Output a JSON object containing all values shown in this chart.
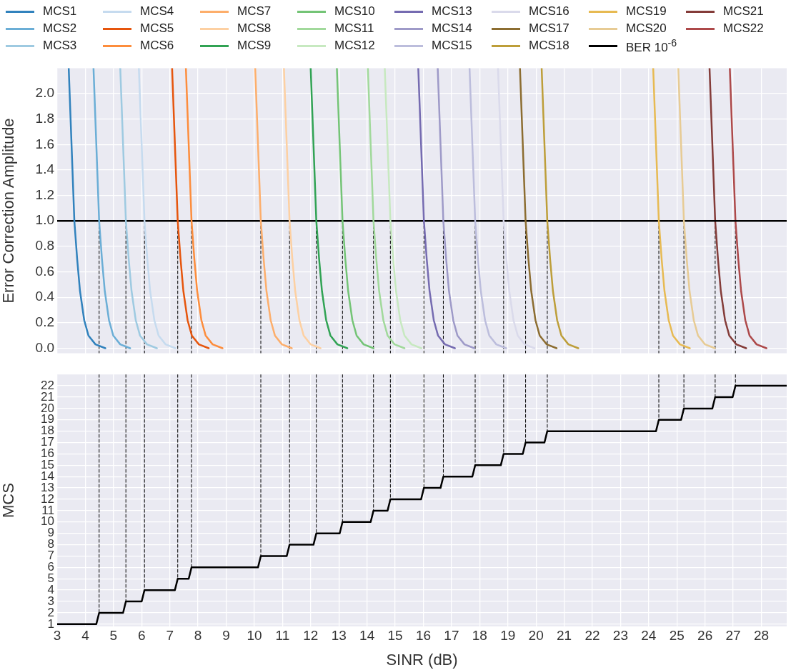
{
  "chart_data": [
    {
      "type": "line",
      "ylabel": "Error Correction Amplitude",
      "xlim": [
        3,
        28.9
      ],
      "ylim": [
        -0.04,
        2.2
      ],
      "xticks": [
        3,
        4,
        5,
        6,
        7,
        8,
        9,
        10,
        11,
        12,
        13,
        14,
        15,
        16,
        17,
        18,
        19,
        20,
        21,
        22,
        23,
        24,
        25,
        26,
        27,
        28
      ],
      "yticks": [
        {
          "value": 0,
          "label": "0.0"
        },
        0.2,
        0.4,
        0.6,
        0.8,
        {
          "value": 1,
          "label": "1.0"
        },
        1.2,
        1.4,
        1.6,
        1.8,
        {
          "value": 2,
          "label": "2.0"
        }
      ],
      "tick_labels": "y",
      "grid": true,
      "legend": "top",
      "marker": "none",
      "line_style": "solid",
      "series": [
        {
          "name": "MCS1",
          "color": "#3182bd",
          "x": [
            3.41,
            3.61,
            3.71,
            3.81,
            3.96,
            4.11,
            4.36,
            4.71
          ],
          "values": [
            2.2,
            1,
            0.7,
            0.45,
            0.22,
            0.1,
            0.03,
            0
          ]
        },
        {
          "name": "MCS2",
          "color": "#6baed6",
          "x": [
            4.29,
            4.49,
            4.59,
            4.69,
            4.84,
            4.99,
            5.24,
            5.59
          ],
          "values": [
            2.2,
            1,
            0.7,
            0.45,
            0.22,
            0.1,
            0.03,
            0
          ]
        },
        {
          "name": "MCS3",
          "color": "#9ecae1",
          "x": [
            5.24,
            5.44,
            5.54,
            5.64,
            5.79,
            5.94,
            6.19,
            6.54
          ],
          "values": [
            2.2,
            1,
            0.7,
            0.45,
            0.22,
            0.1,
            0.03,
            0
          ]
        },
        {
          "name": "MCS4",
          "color": "#c6dbef",
          "x": [
            5.9,
            6.1,
            6.2,
            6.3,
            6.45,
            6.6,
            6.85,
            7.2
          ],
          "values": [
            2.2,
            1,
            0.7,
            0.45,
            0.22,
            0.1,
            0.03,
            0
          ]
        },
        {
          "name": "MCS5",
          "color": "#e6550d",
          "x": [
            7.08,
            7.28,
            7.38,
            7.48,
            7.63,
            7.78,
            8.03,
            8.38
          ],
          "values": [
            2.2,
            1,
            0.7,
            0.45,
            0.22,
            0.1,
            0.03,
            0
          ]
        },
        {
          "name": "MCS6",
          "color": "#fd8d3c",
          "x": [
            7.57,
            7.77,
            7.87,
            7.97,
            8.12,
            8.27,
            8.52,
            8.87
          ],
          "values": [
            2.2,
            1,
            0.7,
            0.45,
            0.22,
            0.1,
            0.03,
            0
          ]
        },
        {
          "name": "MCS7",
          "color": "#fdae6b",
          "x": [
            10.03,
            10.23,
            10.33,
            10.43,
            10.58,
            10.73,
            10.98,
            11.33
          ],
          "values": [
            2.2,
            1,
            0.7,
            0.45,
            0.22,
            0.1,
            0.03,
            0
          ]
        },
        {
          "name": "MCS8",
          "color": "#fdd0a2",
          "x": [
            11.05,
            11.25,
            11.35,
            11.45,
            11.6,
            11.75,
            12,
            12.35
          ],
          "values": [
            2.2,
            1,
            0.7,
            0.45,
            0.22,
            0.1,
            0.03,
            0
          ]
        },
        {
          "name": "MCS9",
          "color": "#31a354",
          "x": [
            12,
            12.2,
            12.3,
            12.4,
            12.55,
            12.7,
            12.95,
            13.3
          ],
          "values": [
            2.2,
            1,
            0.7,
            0.45,
            0.22,
            0.1,
            0.03,
            0
          ]
        },
        {
          "name": "MCS10",
          "color": "#74c476",
          "x": [
            12.93,
            13.13,
            13.23,
            13.33,
            13.48,
            13.63,
            13.88,
            14.23
          ],
          "values": [
            2.2,
            1,
            0.7,
            0.45,
            0.22,
            0.1,
            0.03,
            0
          ]
        },
        {
          "name": "MCS11",
          "color": "#a1d99b",
          "x": [
            14.03,
            14.23,
            14.33,
            14.43,
            14.58,
            14.73,
            14.98,
            15.33
          ],
          "values": [
            2.2,
            1,
            0.7,
            0.45,
            0.22,
            0.1,
            0.03,
            0
          ]
        },
        {
          "name": "MCS12",
          "color": "#c7e9c0",
          "x": [
            14.63,
            14.83,
            14.93,
            15.03,
            15.18,
            15.33,
            15.58,
            15.93
          ],
          "values": [
            2.2,
            1,
            0.7,
            0.45,
            0.22,
            0.1,
            0.03,
            0
          ]
        },
        {
          "name": "MCS13",
          "color": "#756bb1",
          "x": [
            15.82,
            16.02,
            16.12,
            16.22,
            16.37,
            16.52,
            16.77,
            17.12
          ],
          "values": [
            2.2,
            1,
            0.7,
            0.45,
            0.22,
            0.1,
            0.03,
            0
          ]
        },
        {
          "name": "MCS14",
          "color": "#9e9ac8",
          "x": [
            16.51,
            16.71,
            16.81,
            16.91,
            17.06,
            17.21,
            17.46,
            17.81
          ],
          "values": [
            2.2,
            1,
            0.7,
            0.45,
            0.22,
            0.1,
            0.03,
            0
          ]
        },
        {
          "name": "MCS15",
          "color": "#bcbddc",
          "x": [
            17.64,
            17.84,
            17.94,
            18.04,
            18.19,
            18.34,
            18.59,
            18.94
          ],
          "values": [
            2.2,
            1,
            0.7,
            0.45,
            0.22,
            0.1,
            0.03,
            0
          ]
        },
        {
          "name": "MCS16",
          "color": "#dadaeb",
          "x": [
            18.65,
            18.85,
            18.95,
            19.05,
            19.2,
            19.35,
            19.6,
            19.95
          ],
          "values": [
            2.2,
            1,
            0.7,
            0.45,
            0.22,
            0.1,
            0.03,
            0
          ]
        },
        {
          "name": "MCS17",
          "color": "#8c6d31",
          "x": [
            19.43,
            19.63,
            19.73,
            19.83,
            19.98,
            20.13,
            20.38,
            20.73
          ],
          "values": [
            2.2,
            1,
            0.7,
            0.45,
            0.22,
            0.1,
            0.03,
            0
          ]
        },
        {
          "name": "MCS18",
          "color": "#bd9e39",
          "x": [
            20.2,
            20.4,
            20.5,
            20.6,
            20.75,
            20.9,
            21.15,
            21.5
          ],
          "values": [
            2.2,
            1,
            0.7,
            0.45,
            0.22,
            0.1,
            0.03,
            0
          ]
        },
        {
          "name": "MCS19",
          "color": "#e7ba52",
          "x": [
            24.16,
            24.36,
            24.46,
            24.56,
            24.71,
            24.86,
            25.11,
            25.46
          ],
          "values": [
            2.2,
            1,
            0.7,
            0.45,
            0.22,
            0.1,
            0.03,
            0
          ]
        },
        {
          "name": "MCS20",
          "color": "#e7cb94",
          "x": [
            25.05,
            25.25,
            25.35,
            25.45,
            25.6,
            25.75,
            26,
            26.35
          ],
          "values": [
            2.2,
            1,
            0.7,
            0.45,
            0.22,
            0.1,
            0.03,
            0
          ]
        },
        {
          "name": "BER 10$^{-6}$",
          "color": "#000000",
          "x": [
            3,
            28.9
          ],
          "values": [
            1,
            1
          ]
        },
        {
          "name": "MCS21",
          "color": "#843c39",
          "x": [
            26.16,
            26.36,
            26.46,
            26.56,
            26.71,
            26.86,
            27.11,
            27.46
          ],
          "values": [
            2.2,
            1,
            0.7,
            0.45,
            0.22,
            0.1,
            0.03,
            0
          ]
        },
        {
          "name": "MCS22",
          "color": "#ad494a",
          "x": [
            26.88,
            27.08,
            27.18,
            27.28,
            27.43,
            27.58,
            27.83,
            28.18
          ],
          "values": [
            2.2,
            1,
            0.7,
            0.45,
            0.22,
            0.1,
            0.03,
            0
          ]
        },
        {
          "color": "#000000",
          "line_style": "dashed",
          "x": [
            4.49,
            4.49
          ],
          "values": [
            1,
            -0.04
          ]
        },
        {
          "color": "#000000",
          "line_style": "dashed",
          "x": [
            5.44,
            5.44
          ],
          "values": [
            1,
            -0.04
          ]
        },
        {
          "color": "#000000",
          "line_style": "dashed",
          "x": [
            6.1,
            6.1
          ],
          "values": [
            1,
            -0.04
          ]
        },
        {
          "color": "#000000",
          "line_style": "dashed",
          "x": [
            7.28,
            7.28
          ],
          "values": [
            1,
            -0.04
          ]
        },
        {
          "color": "#000000",
          "line_style": "dashed",
          "x": [
            7.77,
            7.77
          ],
          "values": [
            1,
            -0.04
          ]
        },
        {
          "color": "#000000",
          "line_style": "dashed",
          "x": [
            10.23,
            10.23
          ],
          "values": [
            1,
            -0.04
          ]
        },
        {
          "color": "#000000",
          "line_style": "dashed",
          "x": [
            11.25,
            11.25
          ],
          "values": [
            1,
            -0.04
          ]
        },
        {
          "color": "#000000",
          "line_style": "dashed",
          "x": [
            12.2,
            12.2
          ],
          "values": [
            1,
            -0.04
          ]
        },
        {
          "color": "#000000",
          "line_style": "dashed",
          "x": [
            13.13,
            13.13
          ],
          "values": [
            1,
            -0.04
          ]
        },
        {
          "color": "#000000",
          "line_style": "dashed",
          "x": [
            14.23,
            14.23
          ],
          "values": [
            1,
            -0.04
          ]
        },
        {
          "color": "#000000",
          "line_style": "dashed",
          "x": [
            14.83,
            14.83
          ],
          "values": [
            1,
            -0.04
          ]
        },
        {
          "color": "#000000",
          "line_style": "dashed",
          "x": [
            16.02,
            16.02
          ],
          "values": [
            1,
            -0.04
          ]
        },
        {
          "color": "#000000",
          "line_style": "dashed",
          "x": [
            16.71,
            16.71
          ],
          "values": [
            1,
            -0.04
          ]
        },
        {
          "color": "#000000",
          "line_style": "dashed",
          "x": [
            17.84,
            17.84
          ],
          "values": [
            1,
            -0.04
          ]
        },
        {
          "color": "#000000",
          "line_style": "dashed",
          "x": [
            18.85,
            18.85
          ],
          "values": [
            1,
            -0.04
          ]
        },
        {
          "color": "#000000",
          "line_style": "dashed",
          "x": [
            19.63,
            19.63
          ],
          "values": [
            1,
            -0.04
          ]
        },
        {
          "color": "#000000",
          "line_style": "dashed",
          "x": [
            20.4,
            20.4
          ],
          "values": [
            1,
            -0.04
          ]
        },
        {
          "color": "#000000",
          "line_style": "dashed",
          "x": [
            24.36,
            24.36
          ],
          "values": [
            1,
            -0.04
          ]
        },
        {
          "color": "#000000",
          "line_style": "dashed",
          "x": [
            25.25,
            25.25
          ],
          "values": [
            1,
            -0.04
          ]
        },
        {
          "color": "#000000",
          "line_style": "dashed",
          "x": [
            26.36,
            26.36
          ],
          "values": [
            1,
            -0.04
          ]
        },
        {
          "color": "#000000",
          "line_style": "dashed",
          "x": [
            27.08,
            27.08
          ],
          "values": [
            1,
            -0.04
          ]
        }
      ]
    },
    {
      "type": "line",
      "xlabel": "SINR (dB)",
      "ylabel": "MCS",
      "xlim": [
        3,
        28.9
      ],
      "ylim": [
        0.8,
        23
      ],
      "xticks": [
        3,
        4,
        5,
        6,
        7,
        8,
        9,
        10,
        11,
        12,
        13,
        14,
        15,
        16,
        17,
        18,
        19,
        20,
        21,
        22,
        23,
        24,
        25,
        26,
        27,
        28
      ],
      "yticks": [
        1,
        2,
        3,
        4,
        5,
        6,
        7,
        8,
        9,
        10,
        11,
        12,
        13,
        14,
        15,
        16,
        17,
        18,
        19,
        20,
        21,
        22
      ],
      "grid": true,
      "marker": "none",
      "line_style": "solid",
      "series": [
        {
          "color": "#000000",
          "x": [
            3,
            4.39,
            4.49,
            5.34,
            5.44,
            6,
            6.1,
            7.18,
            7.28,
            7.67,
            7.77,
            10.13,
            10.23,
            11.15,
            11.25,
            12.1,
            12.2,
            13.03,
            13.13,
            14.13,
            14.23,
            14.73,
            14.83,
            15.92,
            16.02,
            16.61,
            16.71,
            17.74,
            17.84,
            18.75,
            18.85,
            19.53,
            19.63,
            20.3,
            20.4,
            24.26,
            24.36,
            25.15,
            25.25,
            26.26,
            26.36,
            26.98,
            27.08,
            28.9
          ],
          "values": [
            1,
            1,
            2,
            2,
            3,
            3,
            4,
            4,
            5,
            5,
            6,
            6,
            7,
            7,
            8,
            8,
            9,
            9,
            10,
            10,
            11,
            11,
            12,
            12,
            13,
            13,
            14,
            14,
            15,
            15,
            16,
            16,
            17,
            17,
            18,
            18,
            19,
            19,
            20,
            20,
            21,
            21,
            22,
            22
          ]
        },
        {
          "color": "#000000",
          "line_style": "dashed",
          "x": [
            4.49,
            4.49
          ],
          "values": [
            23,
            2
          ]
        },
        {
          "color": "#000000",
          "line_style": "dashed",
          "x": [
            5.44,
            5.44
          ],
          "values": [
            23,
            3
          ]
        },
        {
          "color": "#000000",
          "line_style": "dashed",
          "x": [
            6.1,
            6.1
          ],
          "values": [
            23,
            4
          ]
        },
        {
          "color": "#000000",
          "line_style": "dashed",
          "x": [
            7.28,
            7.28
          ],
          "values": [
            23,
            5
          ]
        },
        {
          "color": "#000000",
          "line_style": "dashed",
          "x": [
            7.77,
            7.77
          ],
          "values": [
            23,
            6
          ]
        },
        {
          "color": "#000000",
          "line_style": "dashed",
          "x": [
            10.23,
            10.23
          ],
          "values": [
            23,
            7
          ]
        },
        {
          "color": "#000000",
          "line_style": "dashed",
          "x": [
            11.25,
            11.25
          ],
          "values": [
            23,
            8
          ]
        },
        {
          "color": "#000000",
          "line_style": "dashed",
          "x": [
            12.2,
            12.2
          ],
          "values": [
            23,
            9
          ]
        },
        {
          "color": "#000000",
          "line_style": "dashed",
          "x": [
            13.13,
            13.13
          ],
          "values": [
            23,
            10
          ]
        },
        {
          "color": "#000000",
          "line_style": "dashed",
          "x": [
            14.23,
            14.23
          ],
          "values": [
            23,
            11
          ]
        },
        {
          "color": "#000000",
          "line_style": "dashed",
          "x": [
            14.83,
            14.83
          ],
          "values": [
            23,
            12
          ]
        },
        {
          "color": "#000000",
          "line_style": "dashed",
          "x": [
            16.02,
            16.02
          ],
          "values": [
            23,
            13
          ]
        },
        {
          "color": "#000000",
          "line_style": "dashed",
          "x": [
            16.71,
            16.71
          ],
          "values": [
            23,
            14
          ]
        },
        {
          "color": "#000000",
          "line_style": "dashed",
          "x": [
            17.84,
            17.84
          ],
          "values": [
            23,
            15
          ]
        },
        {
          "color": "#000000",
          "line_style": "dashed",
          "x": [
            18.85,
            18.85
          ],
          "values": [
            23,
            16
          ]
        },
        {
          "color": "#000000",
          "line_style": "dashed",
          "x": [
            19.63,
            19.63
          ],
          "values": [
            23,
            17
          ]
        },
        {
          "color": "#000000",
          "line_style": "dashed",
          "x": [
            20.4,
            20.4
          ],
          "values": [
            23,
            18
          ]
        },
        {
          "color": "#000000",
          "line_style": "dashed",
          "x": [
            24.36,
            24.36
          ],
          "values": [
            23,
            19
          ]
        },
        {
          "color": "#000000",
          "line_style": "dashed",
          "x": [
            25.25,
            25.25
          ],
          "values": [
            23,
            20
          ]
        },
        {
          "color": "#000000",
          "line_style": "dashed",
          "x": [
            26.36,
            26.36
          ],
          "values": [
            23,
            21
          ]
        },
        {
          "color": "#000000",
          "line_style": "dashed",
          "x": [
            27.08,
            27.08
          ],
          "values": [
            23,
            22
          ]
        }
      ]
    }
  ]
}
